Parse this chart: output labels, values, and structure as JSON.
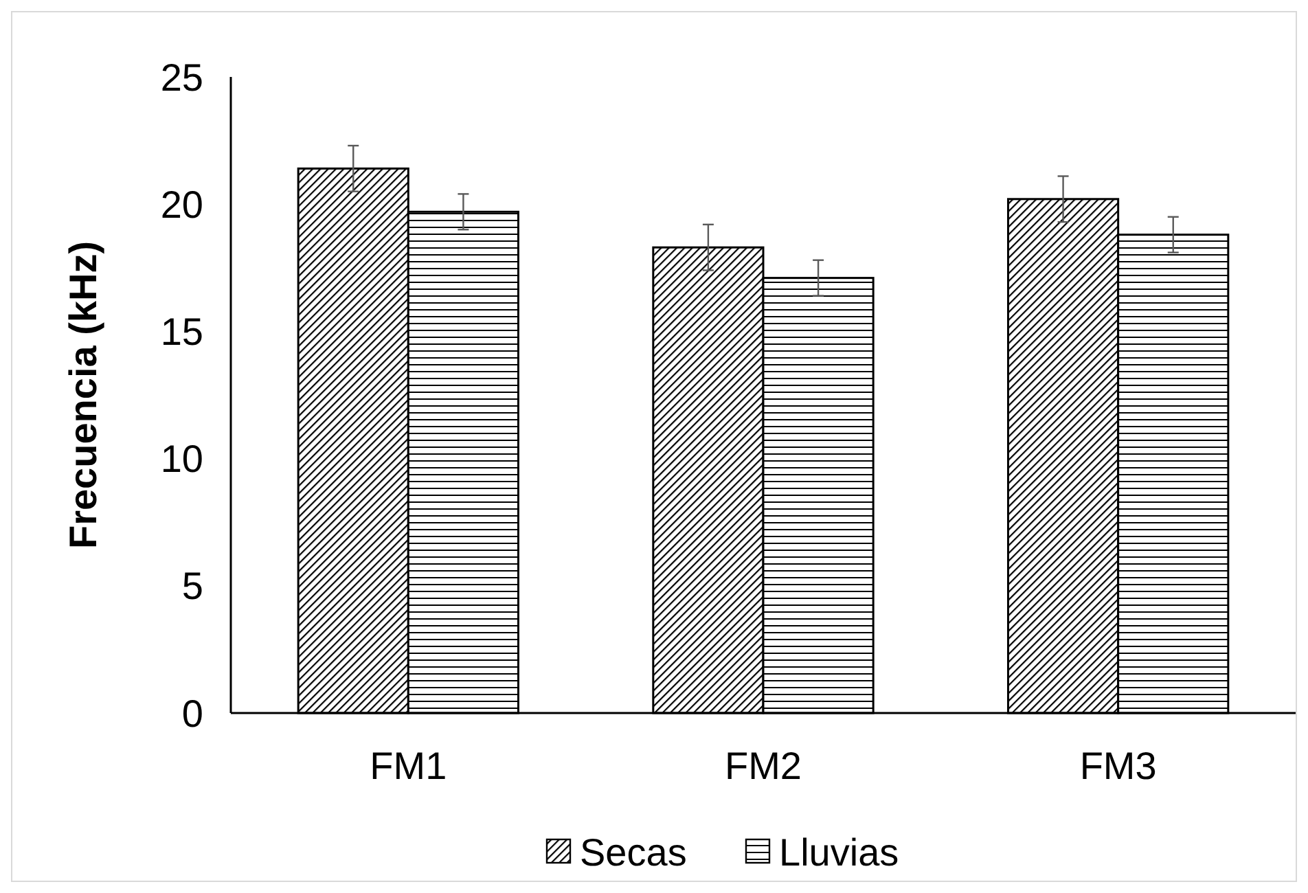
{
  "chart_data": {
    "type": "bar",
    "ylabel": "Frecuencia (kHz)",
    "categories": [
      "FM1",
      "FM2",
      "FM3"
    ],
    "series": [
      {
        "name": "Secas",
        "color": "#000000",
        "values": [
          21.4,
          18.3,
          20.2
        ],
        "errors": [
          0.9,
          0.9,
          0.9
        ]
      },
      {
        "name": "Lluvias",
        "color": "#000000",
        "values": [
          19.7,
          17.1,
          18.8
        ],
        "errors": [
          0.7,
          0.7,
          0.7
        ]
      }
    ],
    "ylim": [
      0,
      25
    ],
    "yticks": [
      0,
      5,
      10,
      15,
      20,
      25
    ],
    "grid": false,
    "legend": "bottom"
  }
}
